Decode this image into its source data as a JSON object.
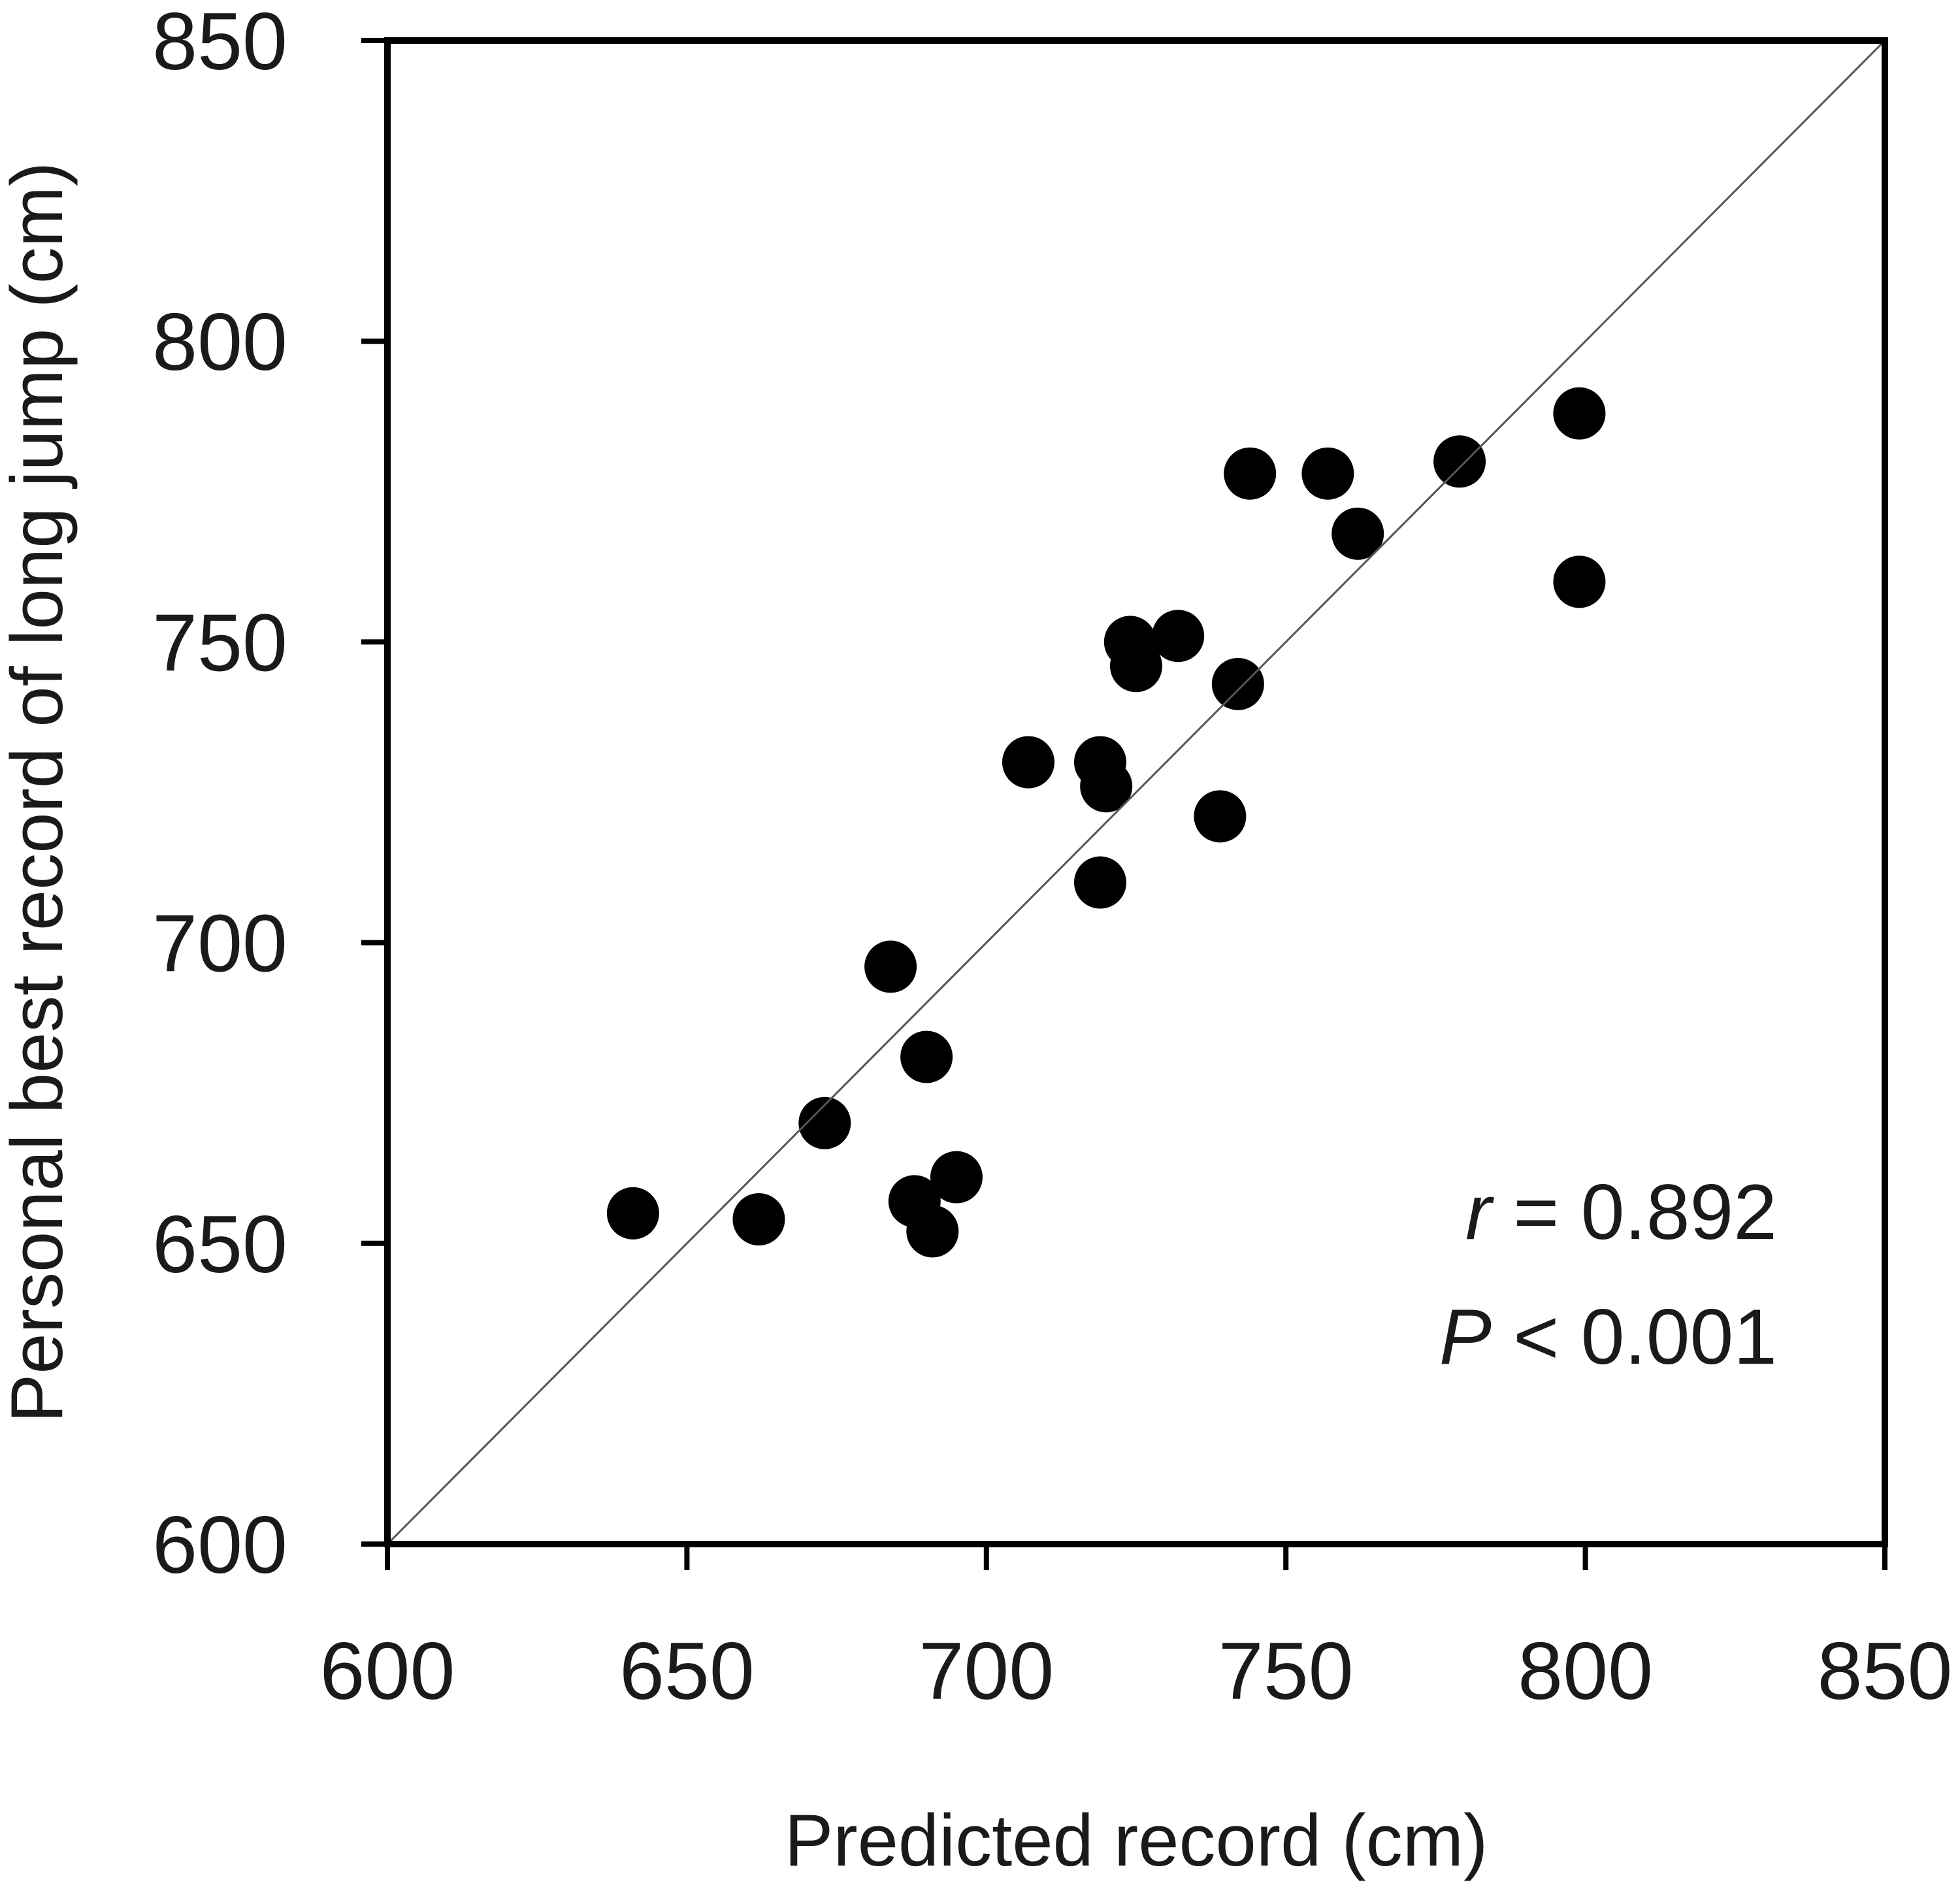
{
  "chart_data": {
    "type": "scatter",
    "xlabel": "Predicted record (cm)",
    "ylabel": "Personal best record of long jump (cm)",
    "xlim": [
      600,
      850
    ],
    "ylim": [
      600,
      850
    ],
    "xticks": [
      "600",
      "650",
      "700",
      "750",
      "800",
      "850"
    ],
    "yticks": [
      "600",
      "650",
      "700",
      "750",
      "800",
      "850"
    ],
    "identity_line": true,
    "grid": false,
    "legend": "none",
    "marker_color": "#000000",
    "annotations": [
      {
        "symbol": "r",
        "text": " = 0.892"
      },
      {
        "symbol": "P",
        "text": " < 0.001"
      }
    ],
    "series": [
      {
        "points": [
          {
            "x": 641,
            "y": 655
          },
          {
            "x": 662,
            "y": 654
          },
          {
            "x": 673,
            "y": 670
          },
          {
            "x": 684,
            "y": 696
          },
          {
            "x": 688,
            "y": 657
          },
          {
            "x": 690,
            "y": 681
          },
          {
            "x": 691,
            "y": 652
          },
          {
            "x": 695,
            "y": 661
          },
          {
            "x": 707,
            "y": 730
          },
          {
            "x": 719,
            "y": 730
          },
          {
            "x": 720,
            "y": 726
          },
          {
            "x": 719,
            "y": 710
          },
          {
            "x": 724,
            "y": 750
          },
          {
            "x": 725,
            "y": 746
          },
          {
            "x": 732,
            "y": 751
          },
          {
            "x": 739,
            "y": 721
          },
          {
            "x": 742,
            "y": 743
          },
          {
            "x": 744,
            "y": 778
          },
          {
            "x": 757,
            "y": 778
          },
          {
            "x": 762,
            "y": 768
          },
          {
            "x": 779,
            "y": 780
          },
          {
            "x": 799,
            "y": 788
          },
          {
            "x": 799,
            "y": 760
          }
        ]
      }
    ]
  }
}
